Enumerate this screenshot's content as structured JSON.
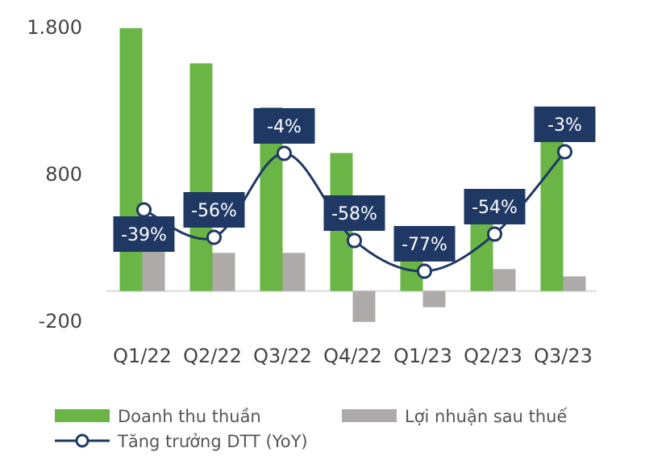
{
  "chart_data": {
    "type": "bar",
    "categories": [
      "Q1/22",
      "Q2/22",
      "Q3/22",
      "Q4/22",
      "Q1/23",
      "Q2/23",
      "Q3/23"
    ],
    "y_ticks": [
      "1.800",
      "800",
      "-200"
    ],
    "y_tick_values": [
      1800,
      800,
      -200
    ],
    "ylim": [
      -200,
      1800
    ],
    "series": [
      {
        "name": "Doanh thu thuần",
        "type": "bar",
        "color": "#6ab545",
        "values": [
          1790,
          1550,
          1250,
          940,
          410,
          640,
          1210
        ]
      },
      {
        "name": "Lợi nhuận sau thuế",
        "type": "bar",
        "color": "#aeaaaa",
        "values": [
          400,
          260,
          260,
          -210,
          -110,
          150,
          100
        ]
      },
      {
        "name": "Tăng trưởng DTT (YoY)",
        "type": "line",
        "color": "#1f3864",
        "values": [
          -39,
          -56,
          -4,
          -58,
          -77,
          -54,
          -3
        ],
        "labels": [
          "-39%",
          "-56%",
          "-4%",
          "-58%",
          "-77%",
          "-54%",
          "-3%"
        ]
      }
    ],
    "legend": "bottom",
    "grid": false
  }
}
